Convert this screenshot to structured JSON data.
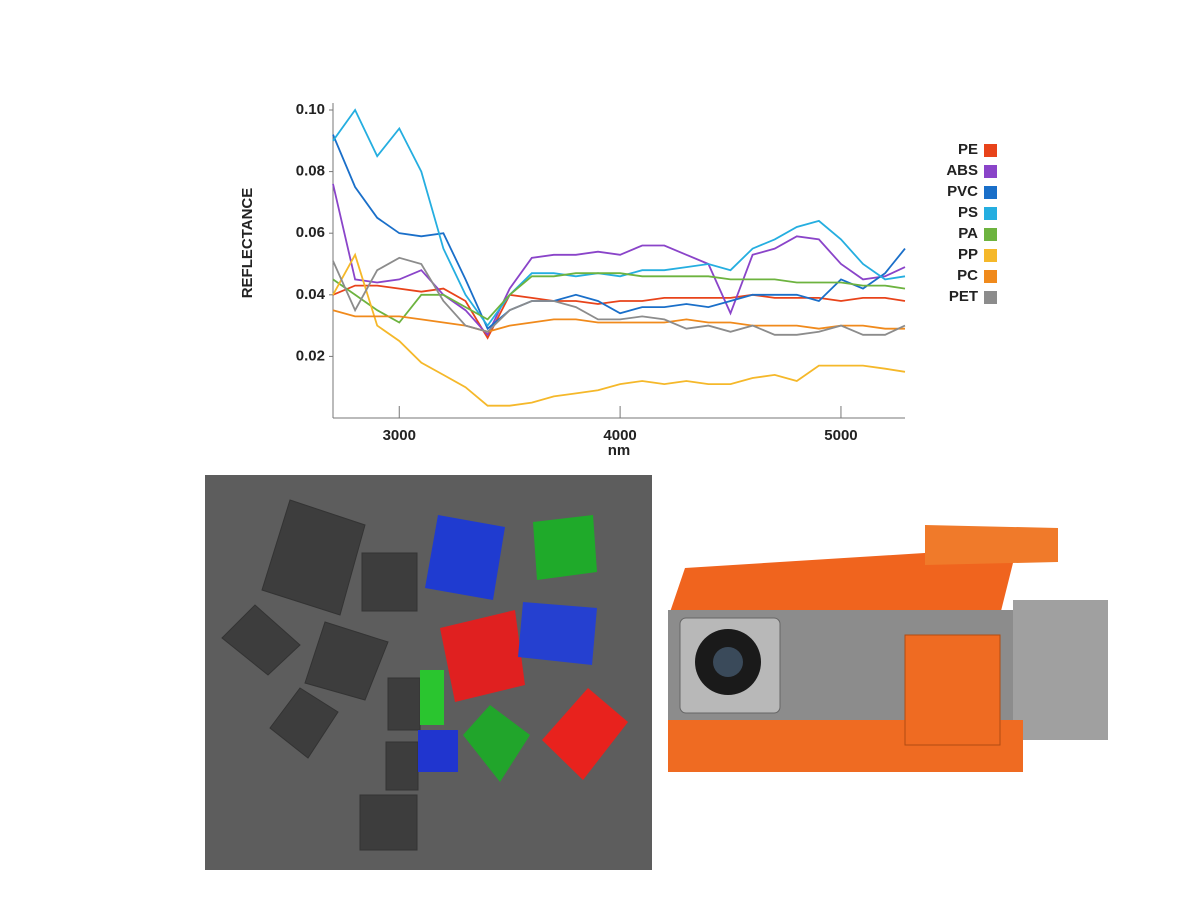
{
  "chart_data": {
    "type": "line",
    "y_label": "REFLECTANCE",
    "x_label": "nm",
    "x": [
      2700,
      2800,
      2900,
      3000,
      3100,
      3200,
      3300,
      3400,
      3500,
      3600,
      3700,
      3800,
      3900,
      4000,
      4100,
      4200,
      4300,
      4400,
      4500,
      4600,
      4700,
      4800,
      4900,
      5000,
      5100,
      5200,
      5290
    ],
    "xlim": [
      2700,
      5290
    ],
    "xticks": [
      3000,
      4000,
      5000
    ],
    "ylim": [
      0,
      0.1
    ],
    "yticks": [
      0.02,
      0.04,
      0.06,
      0.08,
      {
        "value": 0.1,
        "label": "0.10"
      }
    ],
    "grid": false,
    "legend": "right",
    "series": [
      {
        "name": "PE",
        "color": "#e8431a",
        "values": [
          0.04,
          0.043,
          0.043,
          0.042,
          0.041,
          0.042,
          0.038,
          0.026,
          0.04,
          0.039,
          0.038,
          0.038,
          0.037,
          0.038,
          0.038,
          0.039,
          0.039,
          0.039,
          0.039,
          0.04,
          0.039,
          0.039,
          0.039,
          0.038,
          0.039,
          0.039,
          0.038
        ]
      },
      {
        "name": "ABS",
        "color": "#8a44c9",
        "values": [
          0.076,
          0.045,
          0.044,
          0.045,
          0.048,
          0.04,
          0.035,
          0.027,
          0.042,
          0.052,
          0.053,
          0.053,
          0.054,
          0.053,
          0.056,
          0.056,
          0.053,
          0.05,
          0.034,
          0.053,
          0.055,
          0.059,
          0.058,
          0.05,
          0.045,
          0.046,
          0.049
        ]
      },
      {
        "name": "PVC",
        "color": "#1a6fc9",
        "values": [
          0.092,
          0.075,
          0.065,
          0.06,
          0.059,
          0.06,
          0.045,
          0.029,
          0.035,
          0.038,
          0.038,
          0.04,
          0.038,
          0.034,
          0.036,
          0.036,
          0.037,
          0.036,
          0.038,
          0.04,
          0.04,
          0.04,
          0.038,
          0.045,
          0.042,
          0.047,
          0.055
        ]
      },
      {
        "name": "PS",
        "color": "#25aee0",
        "values": [
          0.09,
          0.1,
          0.085,
          0.094,
          0.08,
          0.055,
          0.04,
          0.03,
          0.04,
          0.047,
          0.047,
          0.046,
          0.047,
          0.046,
          0.048,
          0.048,
          0.049,
          0.05,
          0.048,
          0.055,
          0.058,
          0.062,
          0.064,
          0.058,
          0.05,
          0.045,
          0.046
        ]
      },
      {
        "name": "PA",
        "color": "#6db33f",
        "values": [
          0.045,
          0.04,
          0.035,
          0.031,
          0.04,
          0.04,
          0.036,
          0.032,
          0.04,
          0.046,
          0.046,
          0.047,
          0.047,
          0.047,
          0.046,
          0.046,
          0.046,
          0.046,
          0.045,
          0.045,
          0.045,
          0.044,
          0.044,
          0.044,
          0.043,
          0.043,
          0.042
        ]
      },
      {
        "name": "PP",
        "color": "#f5b82a",
        "values": [
          0.04,
          0.053,
          0.03,
          0.025,
          0.018,
          0.014,
          0.01,
          0.004,
          0.004,
          0.005,
          0.007,
          0.008,
          0.009,
          0.011,
          0.012,
          0.011,
          0.012,
          0.011,
          0.011,
          0.013,
          0.014,
          0.012,
          0.017,
          0.017,
          0.017,
          0.016,
          0.015
        ]
      },
      {
        "name": "PC",
        "color": "#f08a1c",
        "values": [
          0.035,
          0.033,
          0.033,
          0.033,
          0.032,
          0.031,
          0.03,
          0.028,
          0.03,
          0.031,
          0.032,
          0.032,
          0.031,
          0.031,
          0.031,
          0.031,
          0.032,
          0.031,
          0.031,
          0.03,
          0.03,
          0.03,
          0.029,
          0.03,
          0.03,
          0.029,
          0.029
        ]
      },
      {
        "name": "PET",
        "color": "#8c8c8c",
        "values": [
          0.051,
          0.035,
          0.048,
          0.052,
          0.05,
          0.038,
          0.03,
          0.028,
          0.035,
          0.038,
          0.038,
          0.036,
          0.032,
          0.032,
          0.033,
          0.032,
          0.029,
          0.03,
          0.028,
          0.03,
          0.027,
          0.027,
          0.028,
          0.03,
          0.027,
          0.027,
          0.03
        ]
      }
    ]
  }
}
